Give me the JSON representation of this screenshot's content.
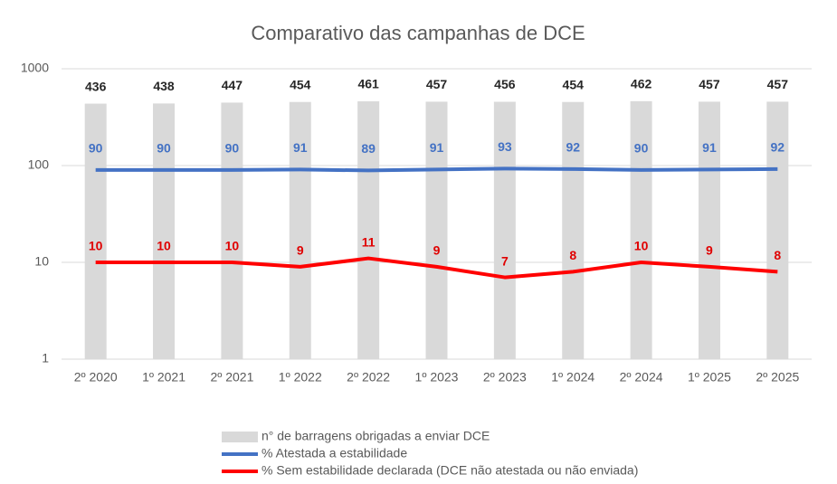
{
  "chart_data": {
    "type": "bar",
    "title": "Comparativo das campanhas de DCE",
    "categories": [
      "2º 2020",
      "1º 2021",
      "2º 2021",
      "1º 2022",
      "2º 2022",
      "1º 2023",
      "2º 2023",
      "1º 2024",
      "2º 2024",
      "1º 2025",
      "2º 2025"
    ],
    "series": [
      {
        "name": "n° de barragens obrigadas a enviar DCE",
        "type": "bar",
        "color": "#d9d9d9",
        "label_color": "#262626",
        "values": [
          436,
          438,
          447,
          454,
          461,
          457,
          456,
          454,
          462,
          457,
          457
        ]
      },
      {
        "name": "% Atestada a estabilidade",
        "type": "line",
        "color": "#4472c4",
        "label_color": "#4472c4",
        "values": [
          90,
          90,
          90,
          91,
          89,
          91,
          93,
          92,
          90,
          91,
          92
        ]
      },
      {
        "name": "% Sem estabilidade declarada (DCE não atestada ou não enviada)",
        "type": "line",
        "color": "#ff0000",
        "label_color": "#e00000",
        "values": [
          10,
          10,
          10,
          9,
          11,
          9,
          7,
          8,
          10,
          9,
          8
        ]
      }
    ],
    "ylim": [
      1,
      1000
    ],
    "yticks": [
      1,
      10,
      100,
      1000
    ],
    "log_scale": true,
    "grid": true,
    "legend": "bottom"
  }
}
